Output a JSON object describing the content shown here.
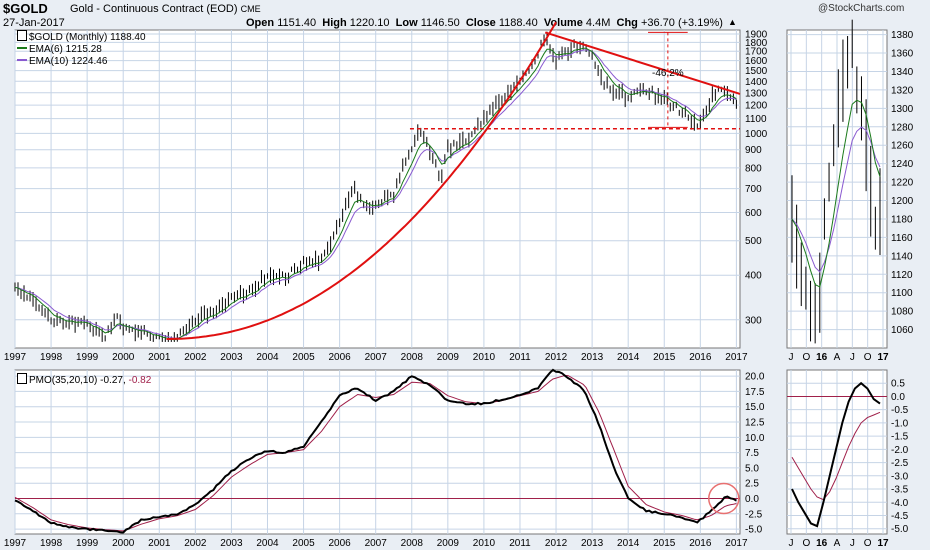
{
  "header": {
    "symbol": "$GOLD",
    "description": "Gold - Continuous Contract (EOD)",
    "exchange": "CME",
    "date": "27-Jan-2017",
    "open_label": "Open",
    "open_value": "1151.40",
    "high_label": "High",
    "high_value": "1220.10",
    "low_label": "Low",
    "low_value": "1146.50",
    "close_label": "Close",
    "close_value": "1188.40",
    "volume_label": "Volume",
    "volume_value": "4.4M",
    "chg_label": "Chg",
    "chg_value": "+36.70 (+3.19%)",
    "arrow_icon": "up-triangle-icon",
    "watermark": "@StockCharts.com"
  },
  "legend": {
    "price": "$GOLD (Monthly) 1188.40",
    "ema6": "EMA(6) 1215.28",
    "ema10": "EMA(10) 1224.46",
    "pmo": "PMO(35,20,10)",
    "pmo_value": "-0.27",
    "pmo_signal": "-0.82"
  },
  "colors": {
    "background": "#e9eef4",
    "panel": "#ffffff",
    "grid": "#c6d4e6",
    "price_bars": "#000000",
    "ema6": "#1a7a1a",
    "ema10": "#8a5ad0",
    "annotation": "#e01010",
    "pmo": "#000000",
    "pmo_signal": "#a0204a"
  },
  "chart_data": [
    {
      "type": "line",
      "title": "$GOLD (Monthly)",
      "y_scale": "log",
      "ylim": [
        250,
        1950
      ],
      "y_ticks": [
        300,
        400,
        500,
        600,
        700,
        800,
        900,
        1000,
        1100,
        1200,
        1300,
        1400,
        1500,
        1600,
        1700,
        1800,
        1900
      ],
      "x_ticks": [
        "1997",
        "1998",
        "1999",
        "2000",
        "2001",
        "2002",
        "2003",
        "2004",
        "2005",
        "2006",
        "2007",
        "2008",
        "2009",
        "2010",
        "2011",
        "2012",
        "2013",
        "2014",
        "2015",
        "2016",
        "2017"
      ],
      "grid": true,
      "legend_position": "top-left",
      "series": [
        {
          "name": "$GOLD",
          "x": [
            1997,
            1997.5,
            1998,
            1998.5,
            1999,
            1999.5,
            1999.8,
            2000,
            2000.5,
            2001,
            2001.3,
            2001.8,
            2002,
            2002.5,
            2003,
            2003.5,
            2004,
            2004.5,
            2005,
            2005.5,
            2006,
            2006.4,
            2006.8,
            2007,
            2007.5,
            2008,
            2008.2,
            2008.6,
            2008.8,
            2009,
            2009.5,
            2010,
            2010.5,
            2011,
            2011.4,
            2011.7,
            2012,
            2012.3,
            2012.7,
            2013,
            2013.3,
            2013.6,
            2014,
            2014.5,
            2015,
            2015.5,
            2015.9,
            2016,
            2016.5,
            2016.8,
            2017
          ],
          "values": [
            365,
            345,
            300,
            295,
            288,
            270,
            305,
            285,
            280,
            265,
            260,
            285,
            300,
            315,
            345,
            360,
            400,
            395,
            430,
            435,
            560,
            700,
            600,
            640,
            670,
            920,
            1000,
            860,
            740,
            900,
            950,
            1100,
            1240,
            1400,
            1550,
            1880,
            1580,
            1700,
            1780,
            1650,
            1400,
            1320,
            1250,
            1320,
            1240,
            1140,
            1060,
            1100,
            1330,
            1280,
            1188
          ]
        },
        {
          "name": "EMA(6)",
          "values_ref": "smoothed"
        },
        {
          "name": "EMA(10)",
          "values_ref": "smoothed"
        }
      ],
      "annotations": [
        {
          "type": "label",
          "text": "-46.2%"
        }
      ]
    },
    {
      "type": "line",
      "title": "$GOLD zoom",
      "ylim": [
        1040,
        1385
      ],
      "y_ticks": [
        1060,
        1080,
        1100,
        1120,
        1140,
        1160,
        1180,
        1200,
        1220,
        1240,
        1260,
        1280,
        1300,
        1320,
        1340,
        1360,
        1380
      ],
      "x_ticks": [
        "J",
        "O",
        "16",
        "A",
        "J",
        "O",
        "17"
      ]
    },
    {
      "type": "line",
      "title": "PMO(35,20,10)",
      "ylim": [
        -5.8,
        21
      ],
      "y_ticks": [
        20.0,
        17.5,
        15.0,
        12.5,
        10.0,
        7.5,
        5.0,
        2.5,
        0.0,
        -2.5,
        -5.0
      ],
      "x_ticks": [
        "1997",
        "1998",
        "1999",
        "2000",
        "2001",
        "2002",
        "2003",
        "2004",
        "2005",
        "2006",
        "2007",
        "2008",
        "2009",
        "2010",
        "2011",
        "2012",
        "2013",
        "2014",
        "2015",
        "2016",
        "2017"
      ],
      "series": [
        {
          "name": "PMO",
          "x": [
            1997,
            1997.5,
            1998,
            1998.5,
            1999,
            1999.5,
            2000,
            2000.5,
            2001,
            2001.5,
            2002,
            2002.5,
            2003,
            2003.5,
            2004,
            2004.5,
            2005,
            2005.5,
            2006,
            2006.5,
            2007,
            2007.5,
            2008,
            2008.5,
            2009,
            2009.5,
            2010,
            2010.5,
            2011,
            2011.5,
            2011.9,
            2012.3,
            2012.8,
            2013.2,
            2013.6,
            2014,
            2014.5,
            2015,
            2015.5,
            2015.9,
            2016.3,
            2016.7,
            2017
          ],
          "values": [
            -0.3,
            -2.0,
            -4.0,
            -4.6,
            -5.0,
            -5.2,
            -5.5,
            -3.5,
            -3.0,
            -2.5,
            -1.0,
            1.5,
            4.5,
            6.5,
            7.8,
            7.5,
            8.5,
            12.5,
            17.0,
            18.0,
            16.0,
            17.5,
            20.0,
            18.5,
            16.0,
            15.5,
            15.5,
            16.2,
            17.0,
            18.0,
            21.0,
            20.0,
            17.5,
            12.0,
            5.0,
            0.0,
            -2.0,
            -2.5,
            -3.2,
            -4.0,
            -2.0,
            0.3,
            -0.27
          ]
        },
        {
          "name": "Signal",
          "x": [
            1997,
            1997.5,
            1998,
            1998.5,
            1999,
            1999.5,
            2000,
            2000.5,
            2001,
            2001.5,
            2002,
            2002.5,
            2003,
            2003.5,
            2004,
            2004.5,
            2005,
            2005.5,
            2006,
            2006.5,
            2007,
            2007.5,
            2008,
            2008.5,
            2009,
            2009.5,
            2010,
            2010.5,
            2011,
            2011.5,
            2011.9,
            2012.3,
            2012.8,
            2013.2,
            2013.6,
            2014,
            2014.5,
            2015,
            2015.5,
            2015.9,
            2016.3,
            2016.7,
            2017
          ],
          "values": [
            0.2,
            -1.5,
            -3.5,
            -4.3,
            -4.8,
            -5.1,
            -5.3,
            -4.2,
            -3.3,
            -2.8,
            -1.8,
            0.5,
            3.5,
            5.5,
            7.2,
            7.5,
            8.0,
            11.0,
            15.0,
            17.0,
            16.5,
            17.0,
            19.0,
            18.8,
            16.8,
            15.8,
            15.5,
            16.0,
            16.8,
            17.5,
            19.5,
            20.2,
            18.5,
            14.0,
            8.0,
            2.0,
            -1.0,
            -2.2,
            -2.8,
            -3.5,
            -2.8,
            -1.2,
            -0.82
          ]
        }
      ]
    },
    {
      "type": "line",
      "title": "PMO zoom",
      "ylim": [
        -5.2,
        1.0
      ],
      "y_ticks": [
        0.5,
        0.0,
        -0.5,
        -1.0,
        -1.5,
        -2.0,
        -2.5,
        -3.0,
        -3.5,
        -4.0,
        -4.5,
        -5.0
      ],
      "x_ticks": [
        "J",
        "O",
        "16",
        "A",
        "J",
        "O",
        "17"
      ]
    }
  ]
}
